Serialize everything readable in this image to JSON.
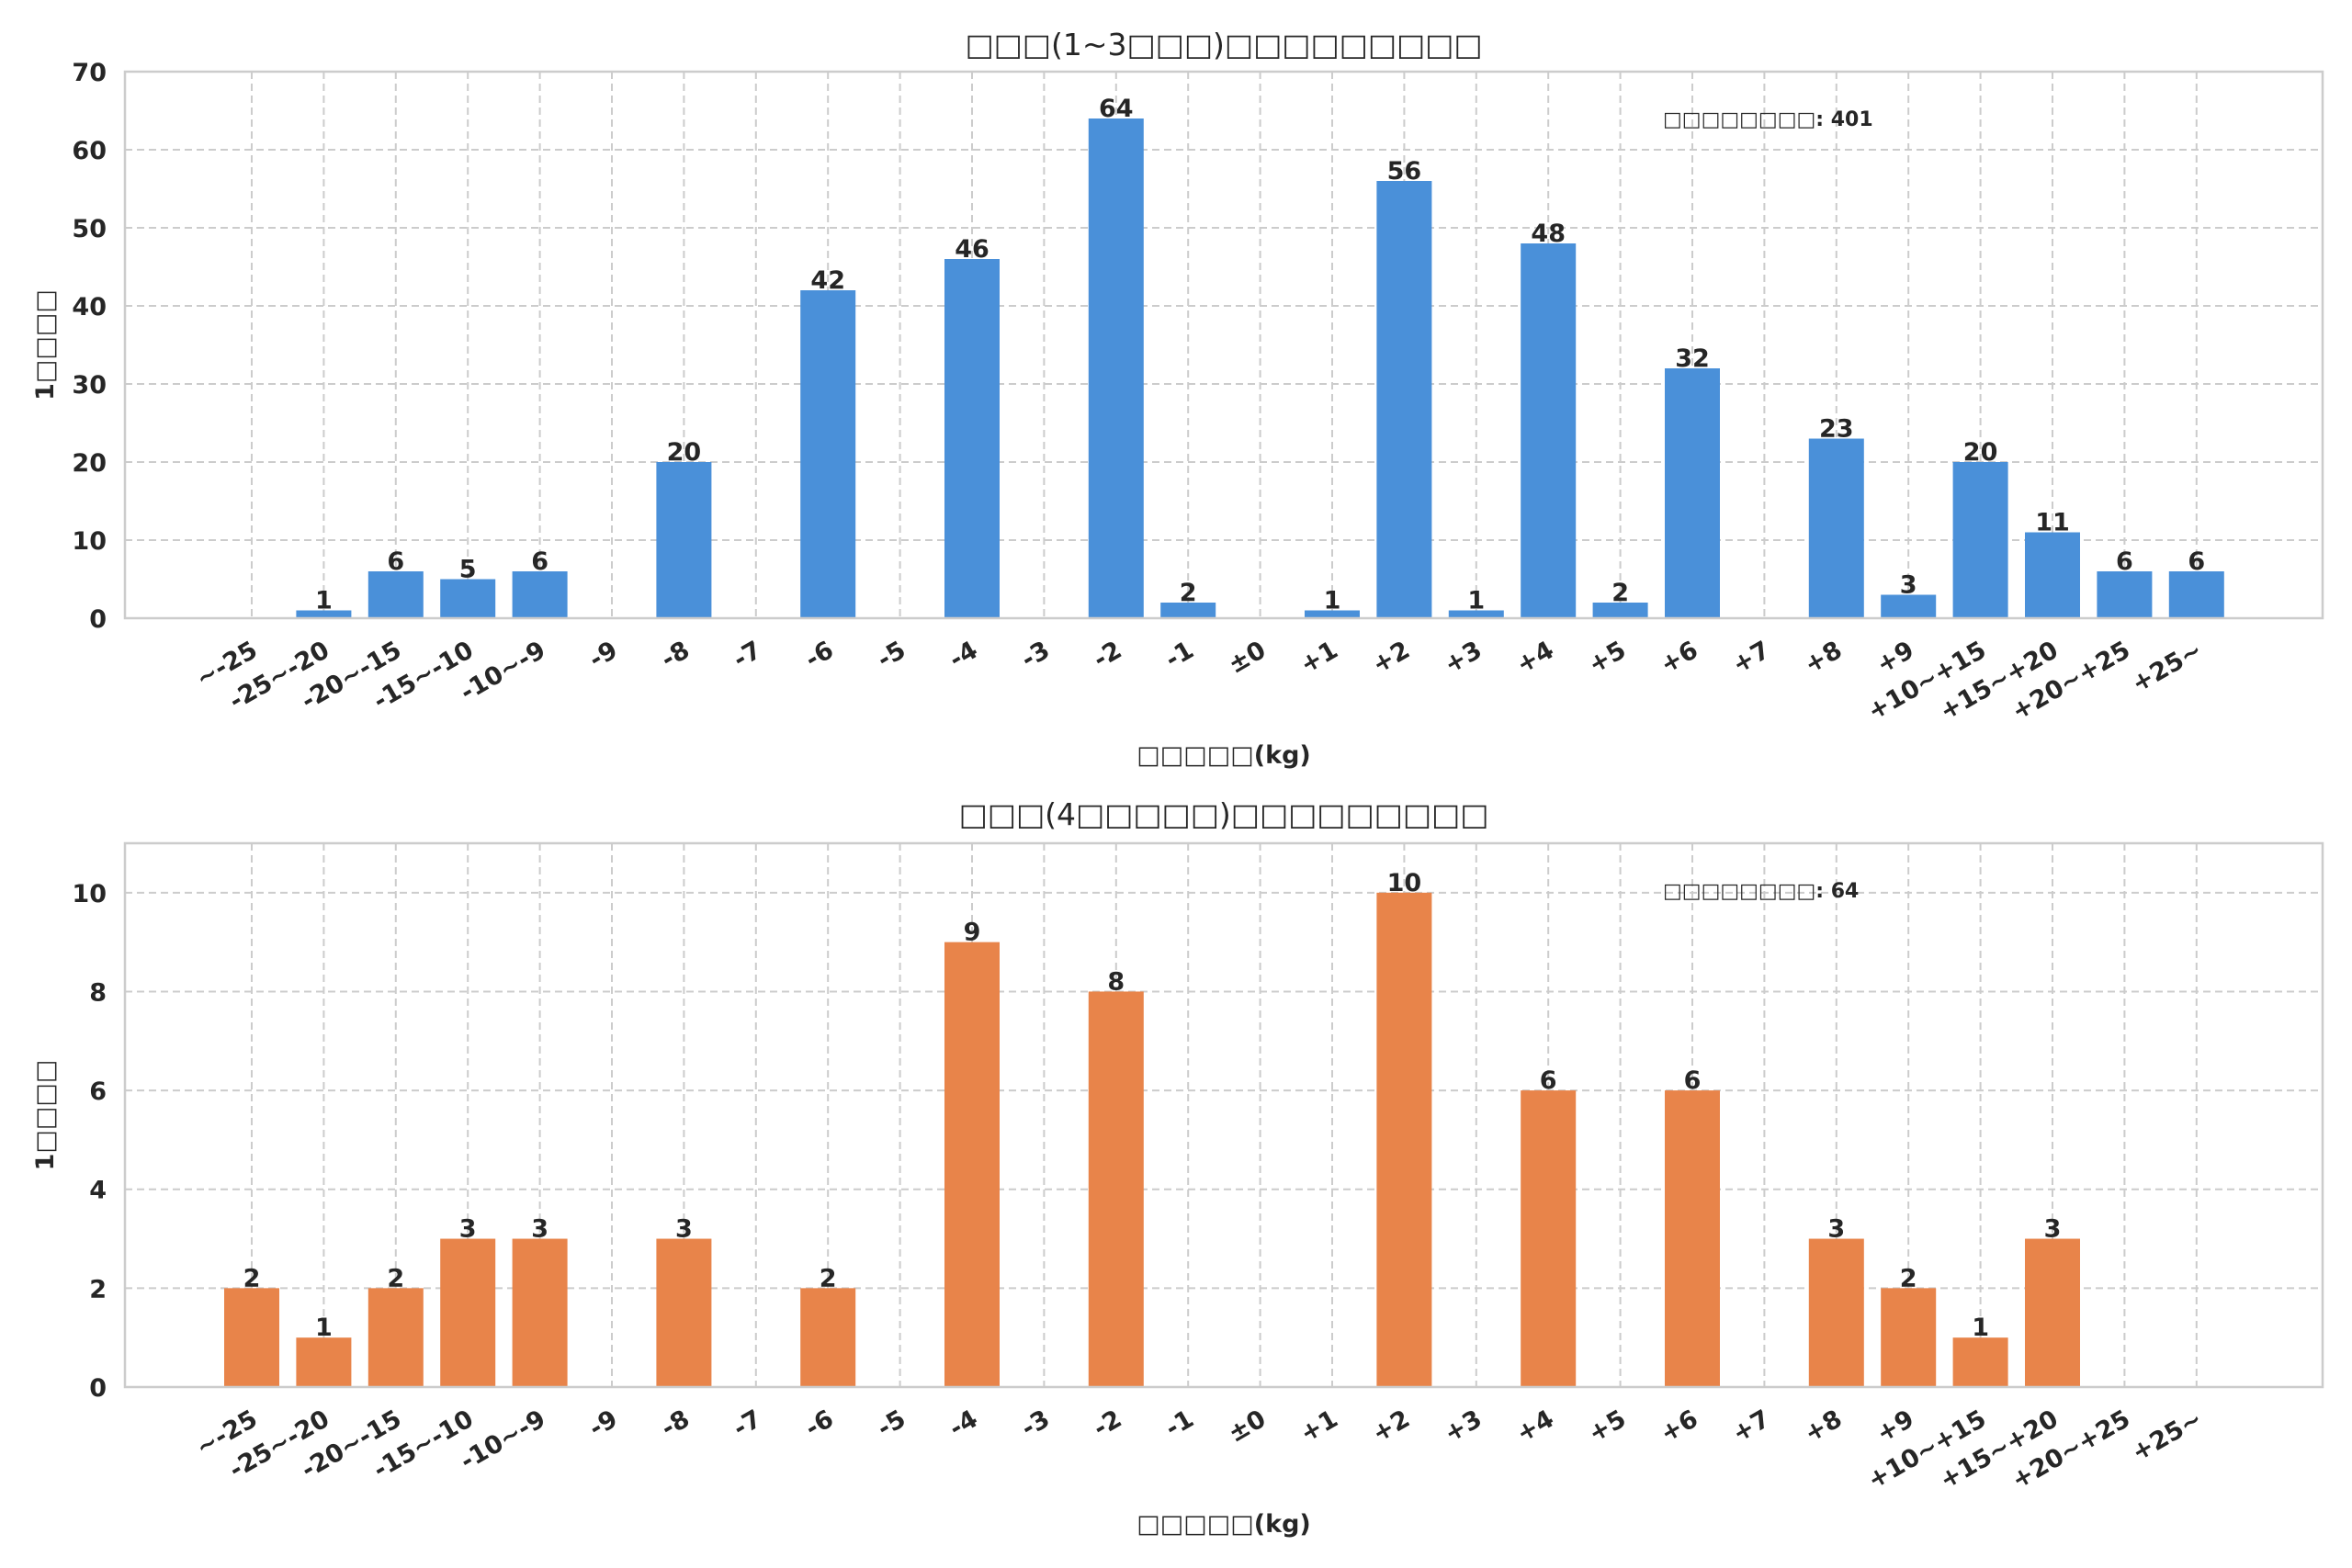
{
  "chart_data": [
    {
      "type": "bar",
      "title": "□□□(1~3□□□)□□□□□□□□□",
      "xlabel": "□□□□□(kg)",
      "ylabel": "1□□□□",
      "annotation": "□□□□□□□□: 401",
      "color": "#4a90d9",
      "ylim": [
        0,
        70
      ],
      "yticks": [
        0,
        10,
        20,
        30,
        40,
        50,
        60,
        70
      ],
      "grid": true,
      "categories": [
        "~-25",
        "-25~-20",
        "-20~-15",
        "-15~-10",
        "-10~-9",
        "-9",
        "-8",
        "-7",
        "-6",
        "-5",
        "-4",
        "-3",
        "-2",
        "-1",
        "±0",
        "+1",
        "+2",
        "+3",
        "+4",
        "+5",
        "+6",
        "+7",
        "+8",
        "+9",
        "+10~+15",
        "+15~+20",
        "+20~+25",
        "+25~"
      ],
      "values": [
        0,
        1,
        6,
        5,
        6,
        0,
        20,
        0,
        42,
        0,
        46,
        0,
        64,
        2,
        0,
        1,
        56,
        1,
        48,
        2,
        32,
        0,
        23,
        3,
        20,
        11,
        6,
        6
      ]
    },
    {
      "type": "bar",
      "title": "□□□(4□□□□□)□□□□□□□□□",
      "xlabel": "□□□□□(kg)",
      "ylabel": "1□□□□",
      "annotation": "□□□□□□□□: 64",
      "color": "#e8844a",
      "ylim": [
        0,
        11
      ],
      "yticks": [
        0,
        2,
        4,
        6,
        8,
        10
      ],
      "grid": true,
      "categories": [
        "~-25",
        "-25~-20",
        "-20~-15",
        "-15~-10",
        "-10~-9",
        "-9",
        "-8",
        "-7",
        "-6",
        "-5",
        "-4",
        "-3",
        "-2",
        "-1",
        "±0",
        "+1",
        "+2",
        "+3",
        "+4",
        "+5",
        "+6",
        "+7",
        "+8",
        "+9",
        "+10~+15",
        "+15~+20",
        "+20~+25",
        "+25~"
      ],
      "values": [
        2,
        1,
        2,
        3,
        3,
        0,
        3,
        0,
        2,
        0,
        9,
        0,
        8,
        0,
        0,
        0,
        10,
        0,
        6,
        0,
        6,
        0,
        3,
        2,
        1,
        3,
        0,
        0
      ]
    }
  ]
}
